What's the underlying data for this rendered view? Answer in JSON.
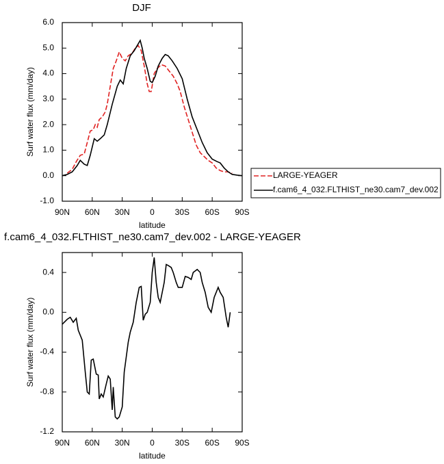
{
  "chart_data": [
    {
      "type": "line",
      "title": "DJF",
      "x_label": "latitude",
      "y_label": "Surf water flux (mm/day)",
      "xlim": [
        90,
        -90
      ],
      "ylim": [
        -1,
        6
      ],
      "xticks": [
        {
          "value": 90,
          "label": "90N"
        },
        {
          "value": 60,
          "label": "60N"
        },
        {
          "value": 30,
          "label": "30N"
        },
        0,
        {
          "value": -30,
          "label": "30S"
        },
        {
          "value": -60,
          "label": "60S"
        },
        {
          "value": -90,
          "label": "90S"
        }
      ],
      "yticks": [
        {
          "value": 6,
          "label": "6.0"
        },
        {
          "value": 5,
          "label": "5.0"
        },
        {
          "value": 4,
          "label": "4.0"
        },
        {
          "value": 3,
          "label": "3.0"
        },
        {
          "value": 2,
          "label": "2.0"
        },
        {
          "value": 1,
          "label": "1.0"
        },
        {
          "value": 0,
          "label": "0.0"
        },
        {
          "value": -1,
          "label": "-1.0"
        }
      ],
      "legend": "right",
      "series": [
        {
          "name": "LARGE-YEAGER",
          "color": "#e02020",
          "dashed": true,
          "x": [
            85,
            80,
            76,
            72,
            68,
            65,
            62,
            59,
            57,
            55,
            53,
            50,
            47,
            45,
            42,
            39,
            36,
            33,
            30,
            27,
            24,
            20,
            17,
            14,
            11,
            8,
            5,
            3,
            1,
            -2,
            -5,
            -9,
            -13,
            -17,
            -21,
            -25,
            -28,
            -32,
            -36,
            -40,
            -44,
            -48,
            -52,
            -56,
            -60,
            -64,
            -68,
            -72,
            -76,
            -80
          ],
          "values": [
            0.1,
            0.25,
            0.55,
            0.8,
            0.85,
            1.3,
            1.75,
            1.8,
            2.0,
            1.9,
            2.2,
            2.3,
            2.5,
            2.8,
            3.5,
            4.2,
            4.5,
            4.85,
            4.6,
            4.5,
            4.7,
            4.8,
            5.0,
            5.1,
            4.9,
            4.3,
            3.6,
            3.3,
            3.3,
            4.0,
            4.2,
            4.35,
            4.3,
            4.1,
            3.9,
            3.6,
            3.3,
            2.7,
            2.2,
            1.7,
            1.2,
            0.9,
            0.75,
            0.6,
            0.5,
            0.3,
            0.2,
            0.15,
            0.15,
            0.1
          ]
        },
        {
          "name": "f.cam6_4_032.FLTHIST_ne30.cam7_dev.002",
          "color": "#000000",
          "dashed": false,
          "x": [
            90,
            85,
            80,
            75,
            72,
            68,
            65,
            62,
            58,
            55,
            52,
            48,
            45,
            40,
            35,
            32,
            29,
            26,
            22,
            18,
            15,
            12,
            10,
            8,
            5,
            2,
            0,
            -3,
            -6,
            -10,
            -13,
            -16,
            -20,
            -25,
            -30,
            -35,
            -40,
            -45,
            -50,
            -55,
            -60,
            -65,
            -68,
            -72,
            -76,
            -80,
            -85,
            -90
          ],
          "values": [
            0.0,
            0.05,
            0.15,
            0.4,
            0.6,
            0.45,
            0.4,
            0.8,
            1.45,
            1.35,
            1.45,
            1.6,
            2.0,
            2.8,
            3.5,
            3.75,
            3.6,
            4.2,
            4.7,
            4.9,
            5.1,
            5.3,
            5.0,
            4.6,
            4.2,
            3.7,
            3.65,
            3.9,
            4.3,
            4.6,
            4.75,
            4.7,
            4.5,
            4.2,
            3.8,
            3.0,
            2.3,
            1.8,
            1.3,
            0.9,
            0.65,
            0.55,
            0.5,
            0.3,
            0.15,
            0.05,
            0.02,
            0.0
          ]
        }
      ]
    },
    {
      "type": "line",
      "title": "f.cam6_4_032.FLTHIST_ne30.cam7_dev.002 - LARGE-YEAGER",
      "x_label": "latitude",
      "y_label": "Surf water flux (mm/day)",
      "xlim": [
        90,
        -90
      ],
      "ylim": [
        -1.2,
        0.6
      ],
      "xticks": [
        {
          "value": 90,
          "label": "90N"
        },
        {
          "value": 60,
          "label": "60N"
        },
        {
          "value": 30,
          "label": "30N"
        },
        0,
        {
          "value": -30,
          "label": "30S"
        },
        {
          "value": -60,
          "label": "60S"
        },
        {
          "value": -90,
          "label": "90S"
        }
      ],
      "yticks": [
        0.4,
        {
          "value": 0,
          "label": "0.0"
        },
        -0.4,
        -0.8,
        -1.2
      ],
      "series": [
        {
          "color": "#000000",
          "dashed": false,
          "x": [
            90,
            85,
            82,
            79,
            76,
            74,
            70,
            67,
            65,
            63,
            61,
            59,
            56,
            54,
            53,
            51,
            49,
            46,
            44,
            42,
            40,
            39,
            37,
            35,
            33,
            30,
            28,
            24,
            22,
            19,
            16,
            13,
            11,
            9,
            7,
            5,
            2,
            0,
            -2,
            -4,
            -6,
            -8,
            -10,
            -12,
            -14,
            -16,
            -19,
            -21,
            -24,
            -26,
            -30,
            -33,
            -36,
            -39,
            -41,
            -45,
            -48,
            -50,
            -53,
            -56,
            -59,
            -60,
            -62,
            -66,
            -68,
            -71,
            -74,
            -76,
            -78
          ],
          "values": [
            -0.12,
            -0.07,
            -0.05,
            -0.1,
            -0.06,
            -0.18,
            -0.28,
            -0.6,
            -0.8,
            -0.82,
            -0.48,
            -0.47,
            -0.62,
            -0.63,
            -0.87,
            -0.82,
            -0.85,
            -0.72,
            -0.64,
            -0.67,
            -0.98,
            -0.75,
            -1.05,
            -1.07,
            -1.05,
            -0.95,
            -0.6,
            -0.3,
            -0.2,
            -0.1,
            0.1,
            0.25,
            0.26,
            -0.08,
            -0.02,
            0.0,
            0.1,
            0.4,
            0.55,
            0.3,
            0.15,
            0.1,
            0.2,
            0.3,
            0.48,
            0.47,
            0.45,
            0.4,
            0.3,
            0.25,
            0.25,
            0.36,
            0.35,
            0.33,
            0.4,
            0.43,
            0.4,
            0.3,
            0.2,
            0.05,
            0.0,
            0.05,
            0.15,
            0.25,
            0.2,
            0.15,
            -0.05,
            -0.15,
            0.0
          ]
        }
      ]
    }
  ]
}
